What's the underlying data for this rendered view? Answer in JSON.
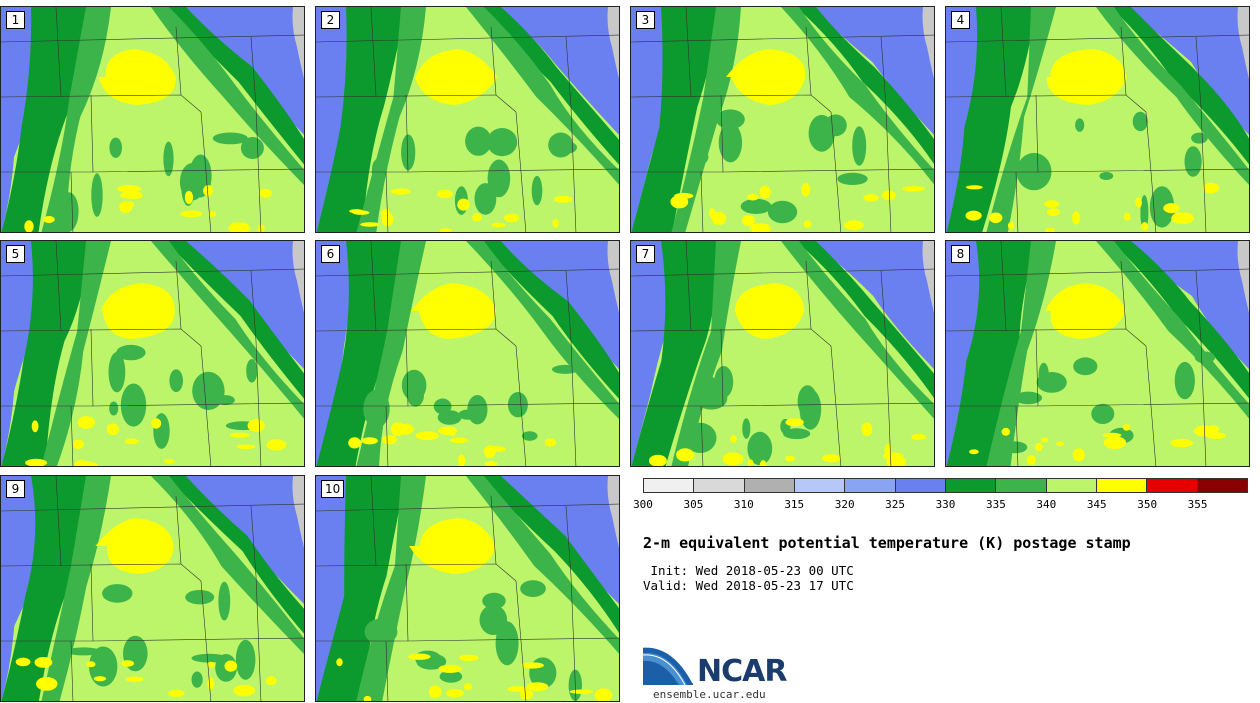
{
  "panels": [
    {
      "label": "1"
    },
    {
      "label": "2"
    },
    {
      "label": "3"
    },
    {
      "label": "4"
    },
    {
      "label": "5"
    },
    {
      "label": "6"
    },
    {
      "label": "7"
    },
    {
      "label": "8"
    },
    {
      "label": "9"
    },
    {
      "label": "10"
    }
  ],
  "colorbar": {
    "colors": [
      "#f0f0f0",
      "#d9d9d9",
      "#b0b0b0",
      "#b6c8f8",
      "#8aa4f4",
      "#6a7ff0",
      "#0c9a2e",
      "#3cb44a",
      "#bcf56a",
      "#ffff00",
      "#e60000",
      "#8b0000"
    ],
    "ticks": [
      "300",
      "305",
      "310",
      "315",
      "320",
      "325",
      "330",
      "335",
      "340",
      "345",
      "350",
      "355"
    ]
  },
  "title": "2-m equivalent potential temperature (K) postage stamp",
  "init_line": " Init: Wed 2018-05-23 00 UTC",
  "valid_line": "Valid: Wed 2018-05-23 17 UTC",
  "logo": {
    "text": "NCAR",
    "url": "ensemble.ucar.edu"
  },
  "map_colors": {
    "west_blue": "#6a7ff0",
    "dark_green": "#0c9a2e",
    "mid_green": "#3cb44a",
    "light_green": "#bcf56a",
    "yellow": "#ffff00",
    "lake_grey": "#c8c8c8"
  }
}
